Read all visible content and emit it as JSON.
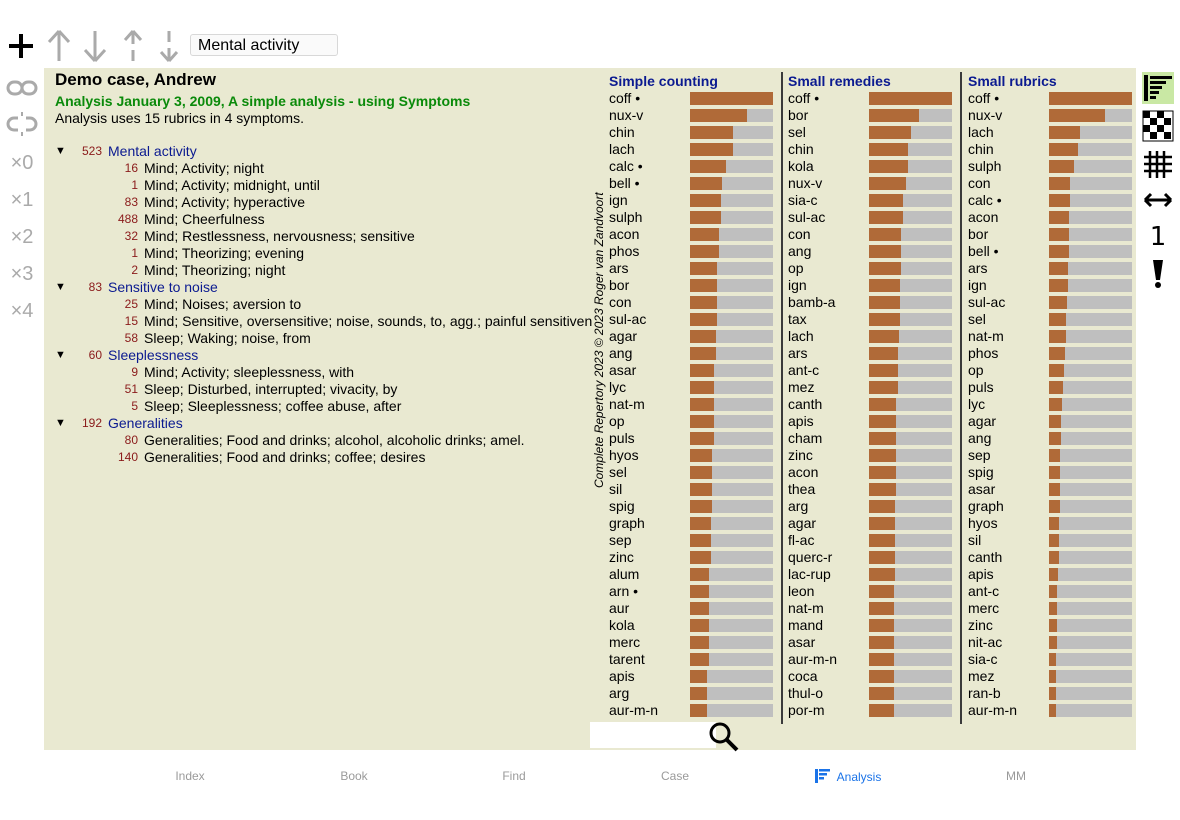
{
  "toolbar": {
    "search_value": "Mental activity",
    "icons": [
      "add-icon",
      "move-up-icon",
      "move-down-icon",
      "move-up-small-icon",
      "move-down-small-icon"
    ]
  },
  "side_tools": {
    "multipliers": [
      "×0",
      "×1",
      "×2",
      "×3",
      "×4"
    ],
    "icons": [
      "link-icon",
      "unlink-icon"
    ]
  },
  "case": {
    "title": "Demo case, Andrew",
    "analysis_title": "Analysis January 3, 2009, A simple analysis - using Symptoms",
    "analysis_summary": "Analysis uses 15 rubrics in 4 symptoms."
  },
  "symptoms": [
    {
      "count": "523",
      "label": "Mental activity",
      "rubrics": [
        {
          "count": "16",
          "label": "Mind; Activity; night"
        },
        {
          "count": "1",
          "label": "Mind; Activity; midnight, until"
        },
        {
          "count": "83",
          "label": "Mind; Activity; hyperactive"
        },
        {
          "count": "488",
          "label": "Mind; Cheerfulness"
        },
        {
          "count": "32",
          "label": "Mind; Restlessness, nervousness; sensitive"
        },
        {
          "count": "1",
          "label": "Mind; Theorizing; evening"
        },
        {
          "count": "2",
          "label": "Mind; Theorizing; night"
        }
      ]
    },
    {
      "count": "83",
      "label": "Sensitive to noise",
      "rubrics": [
        {
          "count": "25",
          "label": "Mind; Noises; aversion to"
        },
        {
          "count": "15",
          "label": "Mind; Sensitive, oversensitive; noise, sounds, to, agg.; painful sensitiveness to"
        },
        {
          "count": "58",
          "label": "Sleep; Waking; noise, from"
        }
      ]
    },
    {
      "count": "60",
      "label": "Sleeplessness",
      "rubrics": [
        {
          "count": "9",
          "label": "Mind; Activity; sleeplessness, with"
        },
        {
          "count": "51",
          "label": "Sleep; Disturbed, interrupted; vivacity, by"
        },
        {
          "count": "5",
          "label": "Sleep; Sleeplessness; coffee abuse, after"
        }
      ]
    },
    {
      "count": "192",
      "label": "Generalities",
      "rubrics": [
        {
          "count": "80",
          "label": "Generalities; Food and drinks; alcohol, alcoholic drinks; amel."
        },
        {
          "count": "140",
          "label": "Generalities; Food and drinks; coffee; desires"
        }
      ]
    }
  ],
  "credit": "Complete Repertory 2023 © 2023 Roger van Zandvoort",
  "columns": [
    {
      "title": "Simple counting",
      "items": [
        [
          "coff •",
          1.0
        ],
        [
          "nux-v",
          0.69
        ],
        [
          "chin",
          0.52
        ],
        [
          "lach",
          0.52
        ],
        [
          "calc •",
          0.43
        ],
        [
          "bell •",
          0.38
        ],
        [
          "ign",
          0.37
        ],
        [
          "sulph",
          0.37
        ],
        [
          "acon",
          0.35
        ],
        [
          "phos",
          0.35
        ],
        [
          "ars",
          0.33
        ],
        [
          "bor",
          0.33
        ],
        [
          "con",
          0.33
        ],
        [
          "sul-ac",
          0.33
        ],
        [
          "agar",
          0.31
        ],
        [
          "ang",
          0.31
        ],
        [
          "asar",
          0.29
        ],
        [
          "lyc",
          0.29
        ],
        [
          "nat-m",
          0.29
        ],
        [
          "op",
          0.29
        ],
        [
          "puls",
          0.29
        ],
        [
          "hyos",
          0.27
        ],
        [
          "sel",
          0.27
        ],
        [
          "sil",
          0.27
        ],
        [
          "spig",
          0.27
        ],
        [
          "graph",
          0.25
        ],
        [
          "sep",
          0.25
        ],
        [
          "zinc",
          0.25
        ],
        [
          "alum",
          0.23
        ],
        [
          "arn •",
          0.23
        ],
        [
          "aur",
          0.23
        ],
        [
          "kola",
          0.23
        ],
        [
          "merc",
          0.23
        ],
        [
          "tarent",
          0.23
        ],
        [
          "apis",
          0.21
        ],
        [
          "arg",
          0.21
        ],
        [
          "aur-m-n",
          0.21
        ]
      ]
    },
    {
      "title": "Small remedies",
      "items": [
        [
          "coff •",
          1.0
        ],
        [
          "bor",
          0.6
        ],
        [
          "sel",
          0.5
        ],
        [
          "chin",
          0.47
        ],
        [
          "kola",
          0.47
        ],
        [
          "nux-v",
          0.44
        ],
        [
          "sia-c",
          0.41
        ],
        [
          "sul-ac",
          0.41
        ],
        [
          "con",
          0.39
        ],
        [
          "ang",
          0.38
        ],
        [
          "op",
          0.38
        ],
        [
          "ign",
          0.37
        ],
        [
          "bamb-a",
          0.37
        ],
        [
          "tax",
          0.37
        ],
        [
          "lach",
          0.36
        ],
        [
          "ars",
          0.35
        ],
        [
          "ant-c",
          0.35
        ],
        [
          "mez",
          0.35
        ],
        [
          "canth",
          0.33
        ],
        [
          "apis",
          0.33
        ],
        [
          "cham",
          0.33
        ],
        [
          "zinc",
          0.33
        ],
        [
          "acon",
          0.32
        ],
        [
          "thea",
          0.32
        ],
        [
          "arg",
          0.31
        ],
        [
          "agar",
          0.31
        ],
        [
          "fl-ac",
          0.31
        ],
        [
          "querc-r",
          0.31
        ],
        [
          "lac-rup",
          0.31
        ],
        [
          "leon",
          0.3
        ],
        [
          "nat-m",
          0.3
        ],
        [
          "mand",
          0.3
        ],
        [
          "asar",
          0.3
        ],
        [
          "aur-m-n",
          0.3
        ],
        [
          "coca",
          0.3
        ],
        [
          "thul-o",
          0.3
        ],
        [
          "por-m",
          0.3
        ]
      ]
    },
    {
      "title": "Small rubrics",
      "items": [
        [
          "coff •",
          1.0
        ],
        [
          "nux-v",
          0.67
        ],
        [
          "lach",
          0.37
        ],
        [
          "chin",
          0.35
        ],
        [
          "sulph",
          0.3
        ],
        [
          "con",
          0.25
        ],
        [
          "calc •",
          0.25
        ],
        [
          "acon",
          0.24
        ],
        [
          "bor",
          0.24
        ],
        [
          "bell •",
          0.24
        ],
        [
          "ars",
          0.23
        ],
        [
          "ign",
          0.23
        ],
        [
          "sul-ac",
          0.22
        ],
        [
          "sel",
          0.21
        ],
        [
          "nat-m",
          0.2
        ],
        [
          "phos",
          0.19
        ],
        [
          "op",
          0.18
        ],
        [
          "puls",
          0.17
        ],
        [
          "lyc",
          0.16
        ],
        [
          "agar",
          0.15
        ],
        [
          "ang",
          0.14
        ],
        [
          "sep",
          0.13
        ],
        [
          "spig",
          0.13
        ],
        [
          "asar",
          0.13
        ],
        [
          "graph",
          0.13
        ],
        [
          "hyos",
          0.12
        ],
        [
          "sil",
          0.12
        ],
        [
          "canth",
          0.12
        ],
        [
          "apis",
          0.11
        ],
        [
          "ant-c",
          0.1
        ],
        [
          "merc",
          0.1
        ],
        [
          "zinc",
          0.1
        ],
        [
          "nit-ac",
          0.1
        ],
        [
          "sia-c",
          0.09
        ],
        [
          "mez",
          0.09
        ],
        [
          "ran-b",
          0.09
        ],
        [
          "aur-m-n",
          0.09
        ]
      ]
    }
  ],
  "tabs": [
    {
      "label": "Index",
      "active": false
    },
    {
      "label": "Book",
      "active": false
    },
    {
      "label": "Find",
      "active": false
    },
    {
      "label": "Case",
      "active": false
    },
    {
      "label": "Analysis",
      "active": true
    },
    {
      "label": "MM",
      "active": false
    }
  ],
  "right_tools": {
    "icons": [
      "list-view-icon",
      "grid-view-icon",
      "table-view-icon",
      "width-icon",
      "one-icon",
      "alert-icon"
    ],
    "one_label": "1"
  },
  "colors": {
    "panel": "#e9e9d1",
    "bar_fill": "#b06a38",
    "bar_bg": "#bfbfbf",
    "symptom": "#0b1a90",
    "analysis": "#0a8a0a",
    "count": "#8a1a1a",
    "accent": "#1a73e8"
  }
}
